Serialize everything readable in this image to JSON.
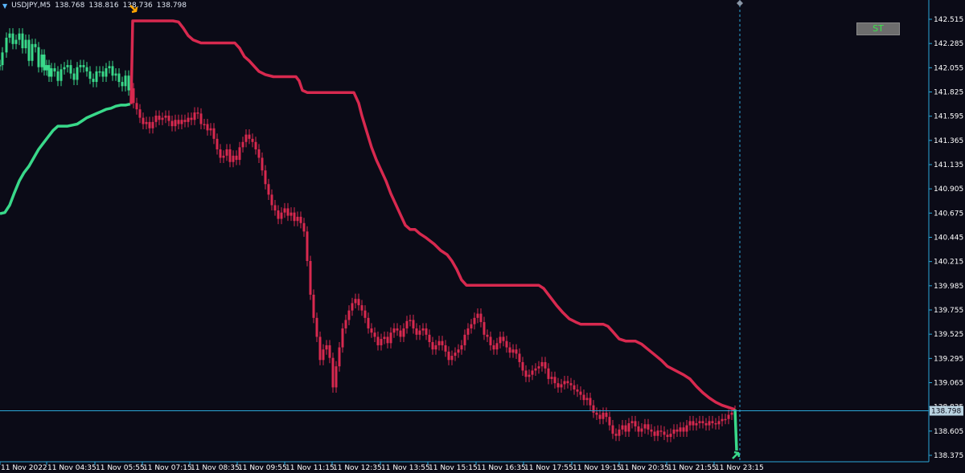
{
  "header": {
    "symbol": "USDJPY,M5",
    "open": "138.768",
    "high": "138.816",
    "low": "138.736",
    "close": "138.798"
  },
  "button": {
    "label": "ST"
  },
  "colors": {
    "background": "#0b0b17",
    "bull_trend": "#39d98a",
    "bear_trend": "#d8294f",
    "axis": "#2ba7d9",
    "text": "#ffffff",
    "price_label_bg": "#b9d2e0"
  },
  "chart_data": {
    "type": "candlestick",
    "title": "",
    "xlabel": "",
    "ylabel": "",
    "ylim": [
      138.375,
      142.62
    ],
    "y_ticks": [
      "142.515",
      "142.285",
      "142.055",
      "141.825",
      "141.595",
      "141.365",
      "141.135",
      "140.905",
      "140.675",
      "140.445",
      "140.215",
      "139.985",
      "139.755",
      "139.525",
      "139.295",
      "139.065",
      "138.835",
      "138.605",
      "138.375"
    ],
    "x_tick_labels": [
      "11 Nov 2022",
      "11 Nov 04:35",
      "11 Nov 05:55",
      "11 Nov 07:15",
      "11 Nov 08:35",
      "11 Nov 09:55",
      "11 Nov 11:15",
      "11 Nov 12:35",
      "11 Nov 13:55",
      "11 Nov 15:15",
      "11 Nov 16:35",
      "11 Nov 17:55",
      "11 Nov 19:15",
      "11 Nov 20:35",
      "11 Nov 21:55",
      "11 Nov 23:15"
    ],
    "current_price": "138.798",
    "price_path": [
      [
        0,
        142.08
      ],
      [
        3,
        142.2
      ],
      [
        8,
        142.34
      ],
      [
        12,
        142.38
      ],
      [
        16,
        142.28
      ],
      [
        20,
        142.32
      ],
      [
        24,
        142.38
      ],
      [
        28,
        142.24
      ],
      [
        32,
        142.32
      ],
      [
        36,
        142.12
      ],
      [
        40,
        142.28
      ],
      [
        44,
        142.25
      ],
      [
        48,
        142.06
      ],
      [
        52,
        142.18
      ],
      [
        55,
        142.03
      ],
      [
        58,
        142.08
      ],
      [
        61,
        141.97
      ],
      [
        64,
        142.05
      ],
      [
        68,
        142.02
      ],
      [
        72,
        141.93
      ],
      [
        76,
        142.04
      ],
      [
        80,
        142.06
      ],
      [
        84,
        142.08
      ],
      [
        88,
        142.0
      ],
      [
        92,
        141.94
      ],
      [
        96,
        142.06
      ],
      [
        100,
        142.08
      ],
      [
        104,
        142.06
      ],
      [
        108,
        142.02
      ],
      [
        112,
        141.95
      ],
      [
        116,
        141.92
      ],
      [
        120,
        142.02
      ],
      [
        124,
        142.02
      ],
      [
        128,
        141.97
      ],
      [
        132,
        142.05
      ],
      [
        136,
        142.07
      ],
      [
        140,
        141.98
      ],
      [
        144,
        142.0
      ],
      [
        148,
        141.92
      ],
      [
        152,
        141.88
      ],
      [
        156,
        141.98
      ],
      [
        160,
        141.84
      ],
      [
        163,
        141.86
      ],
      [
        166,
        141.72
      ],
      [
        170,
        141.66
      ],
      [
        174,
        141.58
      ],
      [
        178,
        141.52
      ],
      [
        182,
        141.54
      ],
      [
        186,
        141.48
      ],
      [
        190,
        141.54
      ],
      [
        194,
        141.6
      ],
      [
        198,
        141.56
      ],
      [
        202,
        141.58
      ],
      [
        206,
        141.6
      ],
      [
        210,
        141.55
      ],
      [
        214,
        141.5
      ],
      [
        218,
        141.56
      ],
      [
        222,
        141.52
      ],
      [
        226,
        141.56
      ],
      [
        230,
        141.54
      ],
      [
        234,
        141.58
      ],
      [
        238,
        141.56
      ],
      [
        242,
        141.63
      ],
      [
        246,
        141.62
      ],
      [
        250,
        141.52
      ],
      [
        254,
        141.52
      ],
      [
        258,
        141.46
      ],
      [
        262,
        141.48
      ],
      [
        266,
        141.38
      ],
      [
        270,
        141.28
      ],
      [
        274,
        141.2
      ],
      [
        278,
        141.22
      ],
      [
        282,
        141.28
      ],
      [
        286,
        141.16
      ],
      [
        290,
        141.22
      ],
      [
        294,
        141.18
      ],
      [
        298,
        141.3
      ],
      [
        302,
        141.35
      ],
      [
        306,
        141.42
      ],
      [
        310,
        141.38
      ],
      [
        314,
        141.35
      ],
      [
        318,
        141.28
      ],
      [
        322,
        141.2
      ],
      [
        326,
        141.08
      ],
      [
        330,
        140.95
      ],
      [
        334,
        140.85
      ],
      [
        338,
        140.75
      ],
      [
        342,
        140.7
      ],
      [
        346,
        140.62
      ],
      [
        350,
        140.68
      ],
      [
        354,
        140.72
      ],
      [
        358,
        140.65
      ],
      [
        362,
        140.68
      ],
      [
        366,
        140.6
      ],
      [
        370,
        140.64
      ],
      [
        374,
        140.58
      ],
      [
        378,
        140.5
      ],
      [
        382,
        140.22
      ],
      [
        386,
        139.9
      ],
      [
        390,
        139.68
      ],
      [
        394,
        139.5
      ],
      [
        398,
        139.28
      ],
      [
        402,
        139.38
      ],
      [
        406,
        139.42
      ],
      [
        410,
        139.3
      ],
      [
        414,
        139.02
      ],
      [
        418,
        139.22
      ],
      [
        422,
        139.4
      ],
      [
        426,
        139.58
      ],
      [
        430,
        139.66
      ],
      [
        434,
        139.75
      ],
      [
        438,
        139.82
      ],
      [
        442,
        139.86
      ],
      [
        446,
        139.8
      ],
      [
        450,
        139.75
      ],
      [
        454,
        139.68
      ],
      [
        458,
        139.58
      ],
      [
        462,
        139.54
      ],
      [
        466,
        139.5
      ],
      [
        470,
        139.42
      ],
      [
        474,
        139.48
      ],
      [
        478,
        139.5
      ],
      [
        482,
        139.44
      ],
      [
        486,
        139.54
      ],
      [
        490,
        139.58
      ],
      [
        494,
        139.56
      ],
      [
        498,
        139.5
      ],
      [
        502,
        139.58
      ],
      [
        506,
        139.65
      ],
      [
        510,
        139.66
      ],
      [
        514,
        139.58
      ],
      [
        518,
        139.52
      ],
      [
        522,
        139.56
      ],
      [
        526,
        139.58
      ],
      [
        530,
        139.52
      ],
      [
        534,
        139.45
      ],
      [
        538,
        139.38
      ],
      [
        542,
        139.42
      ],
      [
        546,
        139.46
      ],
      [
        550,
        139.42
      ],
      [
        554,
        139.36
      ],
      [
        558,
        139.28
      ],
      [
        562,
        139.32
      ],
      [
        566,
        139.35
      ],
      [
        570,
        139.38
      ],
      [
        574,
        139.42
      ],
      [
        578,
        139.52
      ],
      [
        582,
        139.58
      ],
      [
        586,
        139.62
      ],
      [
        590,
        139.68
      ],
      [
        594,
        139.72
      ],
      [
        598,
        139.64
      ],
      [
        602,
        139.52
      ],
      [
        606,
        139.5
      ],
      [
        610,
        139.42
      ],
      [
        614,
        139.38
      ],
      [
        618,
        139.44
      ],
      [
        622,
        139.5
      ],
      [
        626,
        139.46
      ],
      [
        630,
        139.4
      ],
      [
        634,
        139.35
      ],
      [
        638,
        139.38
      ],
      [
        642,
        139.34
      ],
      [
        646,
        139.26
      ],
      [
        650,
        139.18
      ],
      [
        654,
        139.12
      ],
      [
        658,
        139.14
      ],
      [
        662,
        139.18
      ],
      [
        666,
        139.2
      ],
      [
        670,
        139.22
      ],
      [
        674,
        139.26
      ],
      [
        678,
        139.2
      ],
      [
        682,
        139.1
      ],
      [
        686,
        139.12
      ],
      [
        690,
        139.06
      ],
      [
        694,
        139.02
      ],
      [
        698,
        139.05
      ],
      [
        702,
        139.08
      ],
      [
        706,
        139.06
      ],
      [
        710,
        139.04
      ],
      [
        714,
        139.0
      ],
      [
        718,
        138.98
      ],
      [
        722,
        138.95
      ],
      [
        726,
        138.9
      ],
      [
        730,
        138.92
      ],
      [
        734,
        138.85
      ],
      [
        738,
        138.78
      ],
      [
        742,
        138.76
      ],
      [
        746,
        138.72
      ],
      [
        750,
        138.78
      ],
      [
        754,
        138.74
      ],
      [
        758,
        138.66
      ],
      [
        762,
        138.58
      ],
      [
        766,
        138.56
      ],
      [
        770,
        138.62
      ],
      [
        774,
        138.66
      ],
      [
        778,
        138.6
      ],
      [
        782,
        138.68
      ],
      [
        786,
        138.7
      ],
      [
        790,
        138.65
      ],
      [
        794,
        138.6
      ],
      [
        798,
        138.63
      ],
      [
        802,
        138.67
      ],
      [
        806,
        138.62
      ],
      [
        810,
        138.6
      ],
      [
        814,
        138.56
      ],
      [
        818,
        138.61
      ],
      [
        822,
        138.6
      ],
      [
        826,
        138.57
      ],
      [
        830,
        138.55
      ],
      [
        834,
        138.58
      ],
      [
        838,
        138.62
      ],
      [
        842,
        138.6
      ],
      [
        846,
        138.64
      ],
      [
        850,
        138.6
      ],
      [
        854,
        138.66
      ],
      [
        858,
        138.7
      ],
      [
        862,
        138.66
      ],
      [
        866,
        138.68
      ],
      [
        870,
        138.7
      ],
      [
        874,
        138.68
      ],
      [
        878,
        138.66
      ],
      [
        882,
        138.7
      ],
      [
        886,
        138.68
      ],
      [
        890,
        138.67
      ],
      [
        894,
        138.7
      ],
      [
        898,
        138.72
      ],
      [
        902,
        138.72
      ],
      [
        906,
        138.76
      ],
      [
        910,
        138.78
      ],
      [
        914,
        138.798
      ]
    ],
    "supertrend_bull_1": [
      [
        0,
        140.67
      ],
      [
        6,
        140.68
      ],
      [
        12,
        140.75
      ],
      [
        18,
        140.87
      ],
      [
        24,
        140.98
      ],
      [
        30,
        141.06
      ],
      [
        36,
        141.12
      ],
      [
        42,
        141.2
      ],
      [
        48,
        141.28
      ],
      [
        54,
        141.34
      ],
      [
        60,
        141.4
      ],
      [
        66,
        141.46
      ],
      [
        72,
        141.5
      ],
      [
        78,
        141.5
      ],
      [
        84,
        141.5
      ],
      [
        90,
        141.51
      ],
      [
        96,
        141.52
      ],
      [
        102,
        141.55
      ],
      [
        108,
        141.58
      ],
      [
        114,
        141.6
      ],
      [
        120,
        141.62
      ],
      [
        126,
        141.64
      ],
      [
        132,
        141.66
      ],
      [
        138,
        141.67
      ],
      [
        144,
        141.69
      ],
      [
        150,
        141.7
      ],
      [
        156,
        141.7
      ],
      [
        162,
        141.71
      ]
    ],
    "supertrend_bear": [
      [
        163,
        141.71
      ],
      [
        165,
        142.5
      ],
      [
        190,
        142.5
      ],
      [
        215,
        142.5
      ],
      [
        222,
        142.49
      ],
      [
        228,
        142.43
      ],
      [
        234,
        142.36
      ],
      [
        240,
        142.32
      ],
      [
        250,
        142.29
      ],
      [
        270,
        142.29
      ],
      [
        292,
        142.29
      ],
      [
        298,
        142.24
      ],
      [
        304,
        142.16
      ],
      [
        310,
        142.12
      ],
      [
        316,
        142.07
      ],
      [
        322,
        142.02
      ],
      [
        330,
        141.99
      ],
      [
        340,
        141.97
      ],
      [
        368,
        141.97
      ],
      [
        372,
        141.93
      ],
      [
        376,
        141.84
      ],
      [
        382,
        141.82
      ],
      [
        420,
        141.82
      ],
      [
        440,
        141.82
      ],
      [
        446,
        141.72
      ],
      [
        450,
        141.6
      ],
      [
        456,
        141.45
      ],
      [
        462,
        141.3
      ],
      [
        468,
        141.18
      ],
      [
        474,
        141.08
      ],
      [
        480,
        140.98
      ],
      [
        486,
        140.86
      ],
      [
        492,
        140.76
      ],
      [
        498,
        140.66
      ],
      [
        504,
        140.56
      ],
      [
        510,
        140.52
      ],
      [
        516,
        140.52
      ],
      [
        522,
        140.48
      ],
      [
        530,
        140.44
      ],
      [
        540,
        140.38
      ],
      [
        548,
        140.32
      ],
      [
        556,
        140.28
      ],
      [
        562,
        140.22
      ],
      [
        568,
        140.14
      ],
      [
        574,
        140.04
      ],
      [
        580,
        139.99
      ],
      [
        600,
        139.99
      ],
      [
        640,
        139.99
      ],
      [
        670,
        139.99
      ],
      [
        676,
        139.96
      ],
      [
        684,
        139.88
      ],
      [
        692,
        139.8
      ],
      [
        700,
        139.73
      ],
      [
        708,
        139.67
      ],
      [
        716,
        139.64
      ],
      [
        722,
        139.62
      ],
      [
        750,
        139.62
      ],
      [
        756,
        139.6
      ],
      [
        762,
        139.55
      ],
      [
        770,
        139.48
      ],
      [
        778,
        139.46
      ],
      [
        790,
        139.46
      ],
      [
        798,
        139.43
      ],
      [
        806,
        139.38
      ],
      [
        814,
        139.33
      ],
      [
        822,
        139.28
      ],
      [
        830,
        139.22
      ],
      [
        840,
        139.18
      ],
      [
        850,
        139.14
      ],
      [
        858,
        139.1
      ],
      [
        866,
        139.03
      ],
      [
        874,
        138.97
      ],
      [
        882,
        138.92
      ],
      [
        890,
        138.88
      ],
      [
        898,
        138.85
      ],
      [
        906,
        138.83
      ],
      [
        914,
        138.81
      ]
    ],
    "supertrend_bull_2": [
      [
        914,
        138.81
      ],
      [
        916,
        138.42
      ]
    ],
    "signal_arrows": [
      {
        "type": "sell",
        "x": 166,
        "price": 142.6
      },
      {
        "type": "buy",
        "x": 915,
        "price": 138.39
      }
    ],
    "grid": false,
    "legend": "none"
  }
}
